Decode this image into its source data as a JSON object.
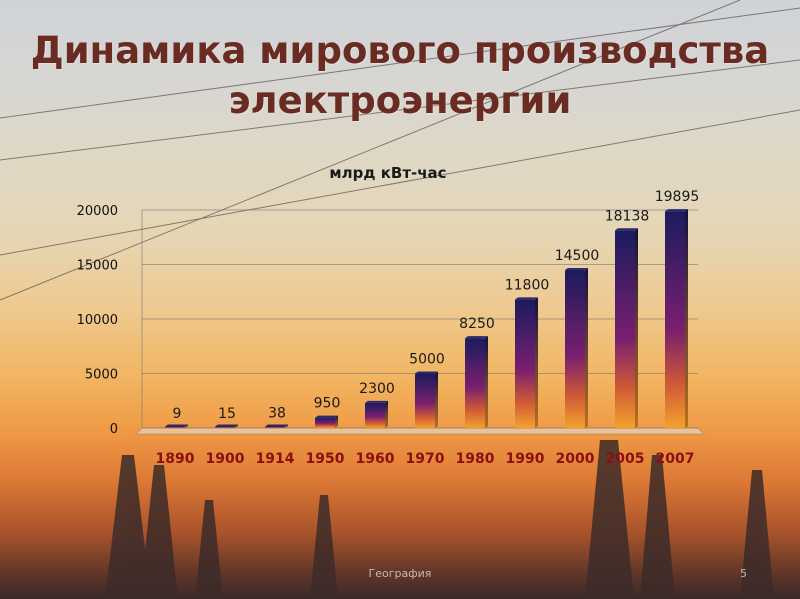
{
  "slide": {
    "title_line1": "Динамика мирового производства",
    "title_line2": "электроэнергии",
    "footer": "География",
    "page_number": "5"
  },
  "colors": {
    "title": "#6a2b22",
    "bar_top": "#1b1b5e",
    "bar_mid": "#7a1f6e",
    "bar_bottom": "#f2a22e",
    "axis_label": "#7a1414",
    "category_label": "#8a1010"
  },
  "chart_data": {
    "type": "bar",
    "title": "млрд кВт-час",
    "xlabel": "",
    "ylabel": "",
    "categories": [
      "1890",
      "1900",
      "1914",
      "1950",
      "1960",
      "1970",
      "1980",
      "1990",
      "2000",
      "2005",
      "2007"
    ],
    "values": [
      9,
      15,
      38,
      950,
      2300,
      5000,
      8250,
      11800,
      14500,
      18138,
      19895
    ],
    "data_labels": [
      "9",
      "15",
      "38",
      "950",
      "2300",
      "5000",
      "8250",
      "11800",
      "14500",
      "18138",
      "19895"
    ],
    "ylim": [
      0,
      20000
    ],
    "yticks": [
      0,
      5000,
      10000,
      15000,
      20000
    ],
    "ytick_labels": [
      "0",
      "5000",
      "10000",
      "15000",
      "20000"
    ],
    "grid": true,
    "legend": "none"
  }
}
